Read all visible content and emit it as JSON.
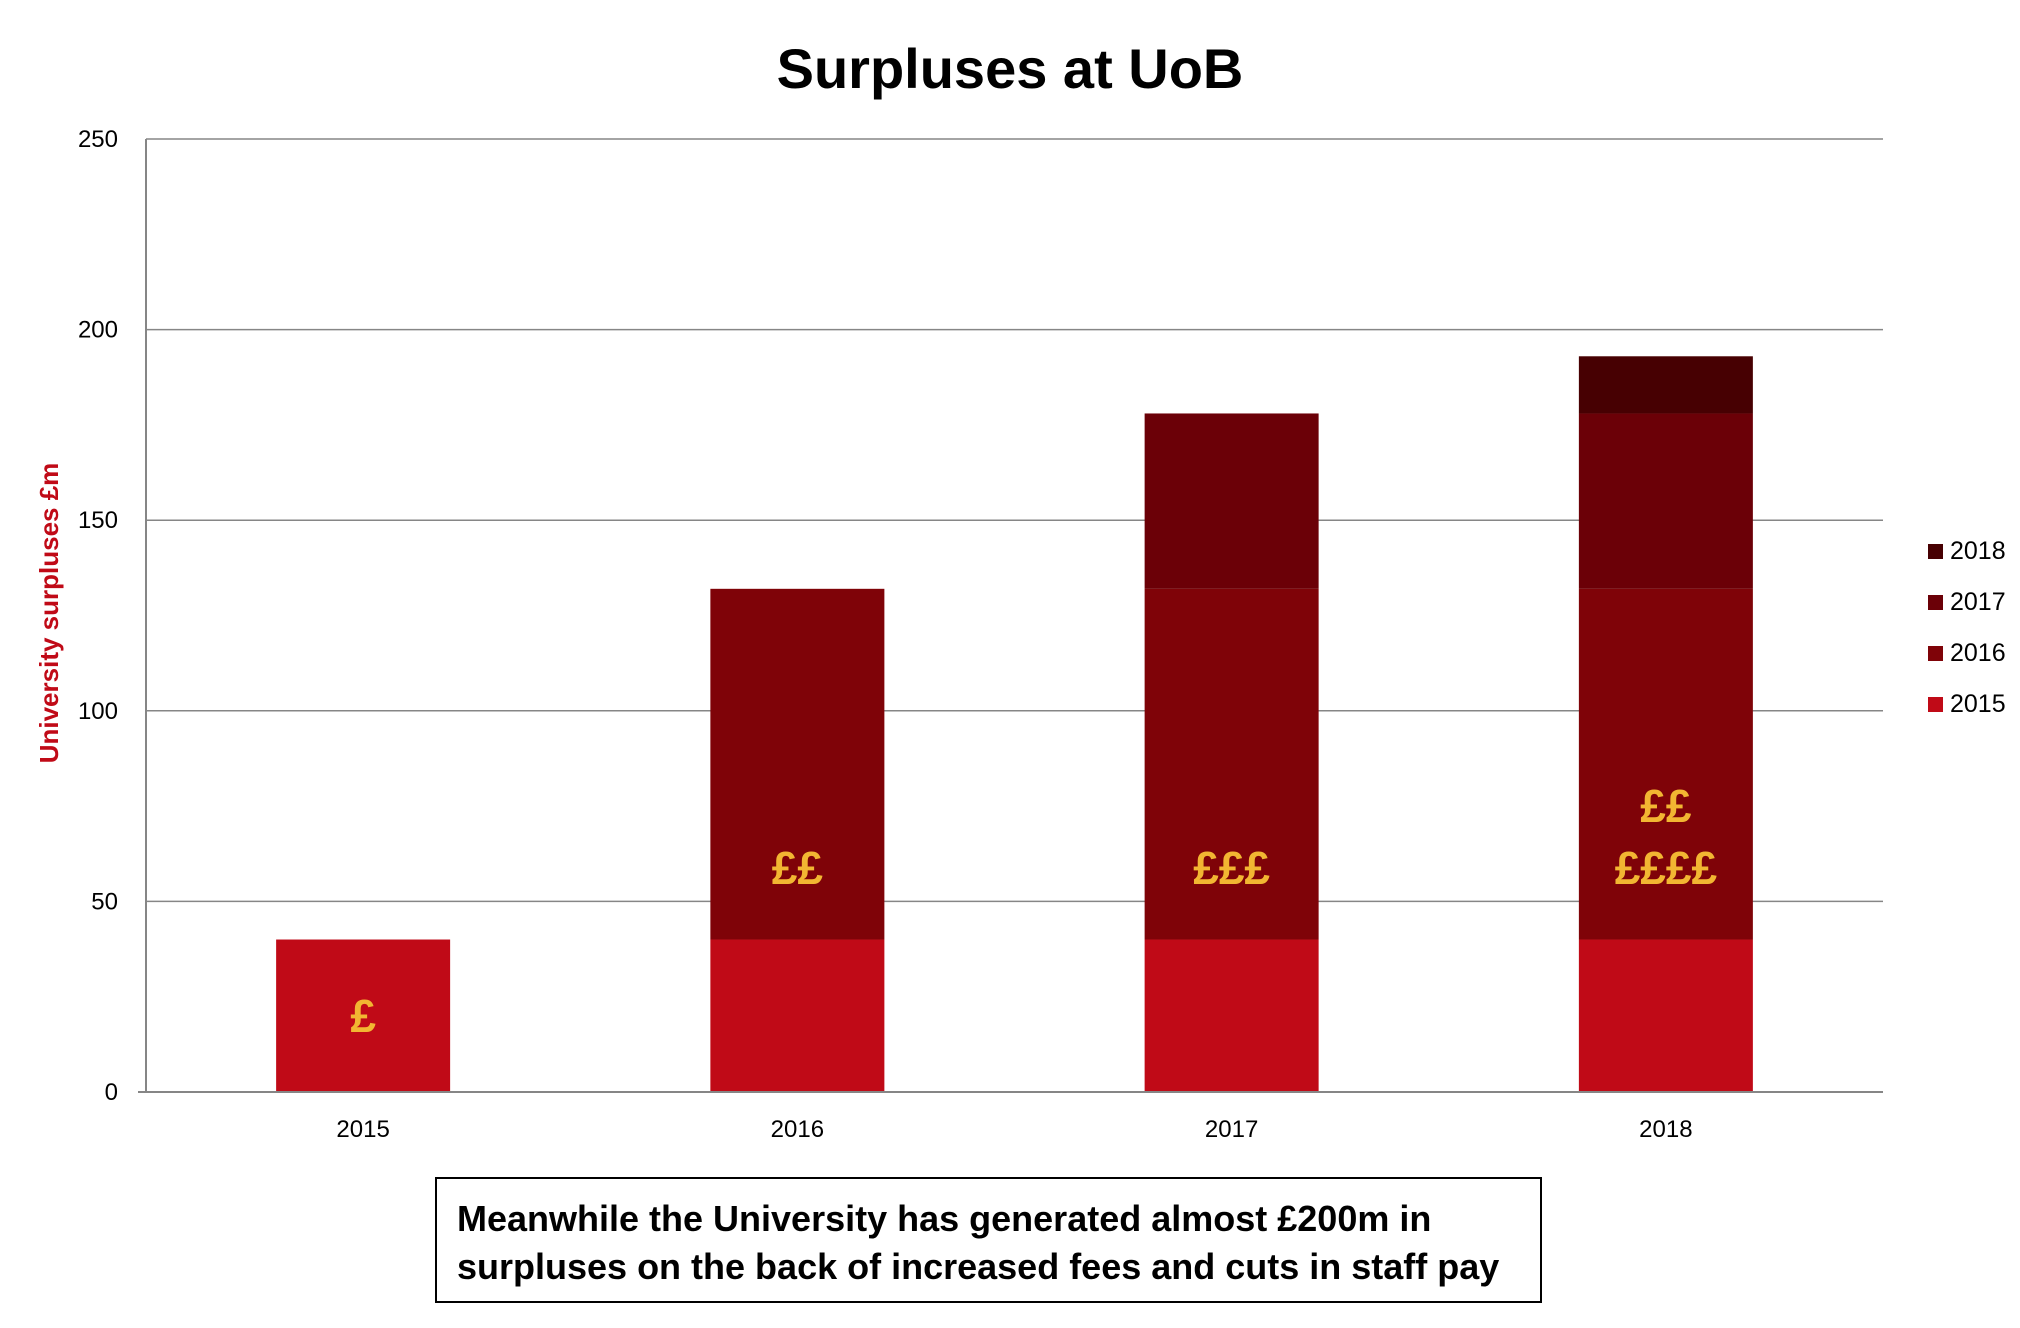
{
  "chart_data": {
    "type": "bar",
    "stacked": true,
    "title": "Surpluses at UoB",
    "xlabel": "",
    "ylabel": "University surpluses £m",
    "ylim": [
      0,
      250
    ],
    "yticks": [
      0,
      50,
      100,
      150,
      200,
      250
    ],
    "categories": [
      "2015",
      "2016",
      "2017",
      "2018"
    ],
    "series": [
      {
        "name": "2015",
        "values": [
          40,
          40,
          40,
          40
        ],
        "color": "#C00A17"
      },
      {
        "name": "2016",
        "values": [
          0,
          92,
          92,
          92
        ],
        "color": "#7F0308"
      },
      {
        "name": "2017",
        "values": [
          0,
          0,
          46,
          46
        ],
        "color": "#6B0007"
      },
      {
        "name": "2018",
        "values": [
          0,
          0,
          0,
          15
        ],
        "color": "#470002"
      }
    ],
    "grid": true,
    "legend_position": "right",
    "bar_labels": [
      {
        "category": "2015",
        "lines": [
          "£"
        ]
      },
      {
        "category": "2016",
        "lines": [
          "££"
        ]
      },
      {
        "category": "2017",
        "lines": [
          "£££"
        ]
      },
      {
        "category": "2018",
        "lines": [
          "££",
          "££££"
        ]
      }
    ],
    "colors": {
      "ylabel": "#C00A17",
      "bar_label": "#F2B632",
      "grid": "#868686"
    }
  },
  "caption": {
    "line1": "Meanwhile the University has generated almost £200m in",
    "line2": "surpluses on the back of increased fees and cuts in staff pay"
  }
}
